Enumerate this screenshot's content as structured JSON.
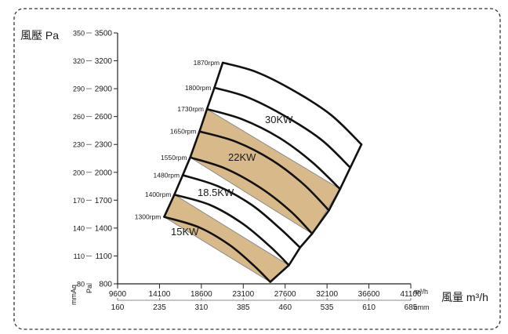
{
  "chart_data": {
    "type": "line",
    "title": "",
    "ylabel": "風壓 Pa",
    "xlabel": "風量 m³/h",
    "x_unit_label": "m³/h",
    "x_alt_unit_label": "cmm",
    "y_alt_unit_label_mmaq": "mmAq",
    "y_alt_unit_label_pa": "Pa",
    "xlim": [
      9600,
      41100
    ],
    "ylim": [
      800,
      3500
    ],
    "grid": false,
    "x_ticks": [
      "9600",
      "14100",
      "18600",
      "23100",
      "27600",
      "32100",
      "36600",
      "41100"
    ],
    "x_ticks_cmm": [
      "160",
      "235",
      "310",
      "385",
      "460",
      "535",
      "610",
      "685"
    ],
    "y_ticks_pa": [
      "800",
      "1100",
      "1400",
      "1700",
      "2000",
      "2300",
      "2600",
      "2900",
      "3200",
      "3500"
    ],
    "y_ticks_mmaq": [
      "80",
      "110",
      "140",
      "170",
      "200",
      "230",
      "260",
      "290",
      "320",
      "350"
    ],
    "series": [
      {
        "name": "1870rpm",
        "points": [
          [
            20900,
            3180
          ],
          [
            24500,
            3080
          ],
          [
            28500,
            2880
          ],
          [
            32500,
            2620
          ],
          [
            35800,
            2300
          ]
        ]
      },
      {
        "name": "1800rpm",
        "points": [
          [
            20000,
            2910
          ],
          [
            23500,
            2810
          ],
          [
            27500,
            2610
          ],
          [
            31500,
            2350
          ],
          [
            34600,
            2050
          ]
        ]
      },
      {
        "name": "1730rpm",
        "points": [
          [
            19200,
            2680
          ],
          [
            23000,
            2570
          ],
          [
            27000,
            2370
          ],
          [
            30500,
            2110
          ],
          [
            33500,
            1820
          ]
        ]
      },
      {
        "name": "1650rpm",
        "points": [
          [
            18400,
            2440
          ],
          [
            22300,
            2330
          ],
          [
            26200,
            2130
          ],
          [
            29600,
            1870
          ],
          [
            32300,
            1590
          ]
        ]
      },
      {
        "name": "1550rpm",
        "points": [
          [
            17400,
            2160
          ],
          [
            21200,
            2040
          ],
          [
            25000,
            1830
          ],
          [
            28200,
            1580
          ],
          [
            30500,
            1340
          ]
        ]
      },
      {
        "name": "1480rpm",
        "points": [
          [
            16600,
            1970
          ],
          [
            20400,
            1850
          ],
          [
            24000,
            1650
          ],
          [
            27000,
            1400
          ],
          [
            29200,
            1190
          ]
        ]
      },
      {
        "name": "1400rpm",
        "points": [
          [
            15700,
            1760
          ],
          [
            19500,
            1650
          ],
          [
            23000,
            1450
          ],
          [
            26000,
            1200
          ],
          [
            28000,
            1000
          ]
        ]
      },
      {
        "name": "1300rpm",
        "points": [
          [
            14600,
            1520
          ],
          [
            18300,
            1410
          ],
          [
            21600,
            1220
          ],
          [
            24200,
            1000
          ],
          [
            26000,
            820
          ]
        ]
      }
    ],
    "power_labels": [
      "30KW",
      "22KW",
      "18.5KW",
      "15KW"
    ],
    "bands": [
      {
        "outline": [
          [
            17400,
            2160
          ],
          [
            19200,
            2680
          ],
          [
            33500,
            1820
          ],
          [
            30500,
            1340
          ]
        ]
      },
      {
        "outline": [
          [
            14600,
            1520
          ],
          [
            15700,
            1760
          ],
          [
            28000,
            1000
          ],
          [
            26000,
            820
          ]
        ]
      }
    ]
  }
}
